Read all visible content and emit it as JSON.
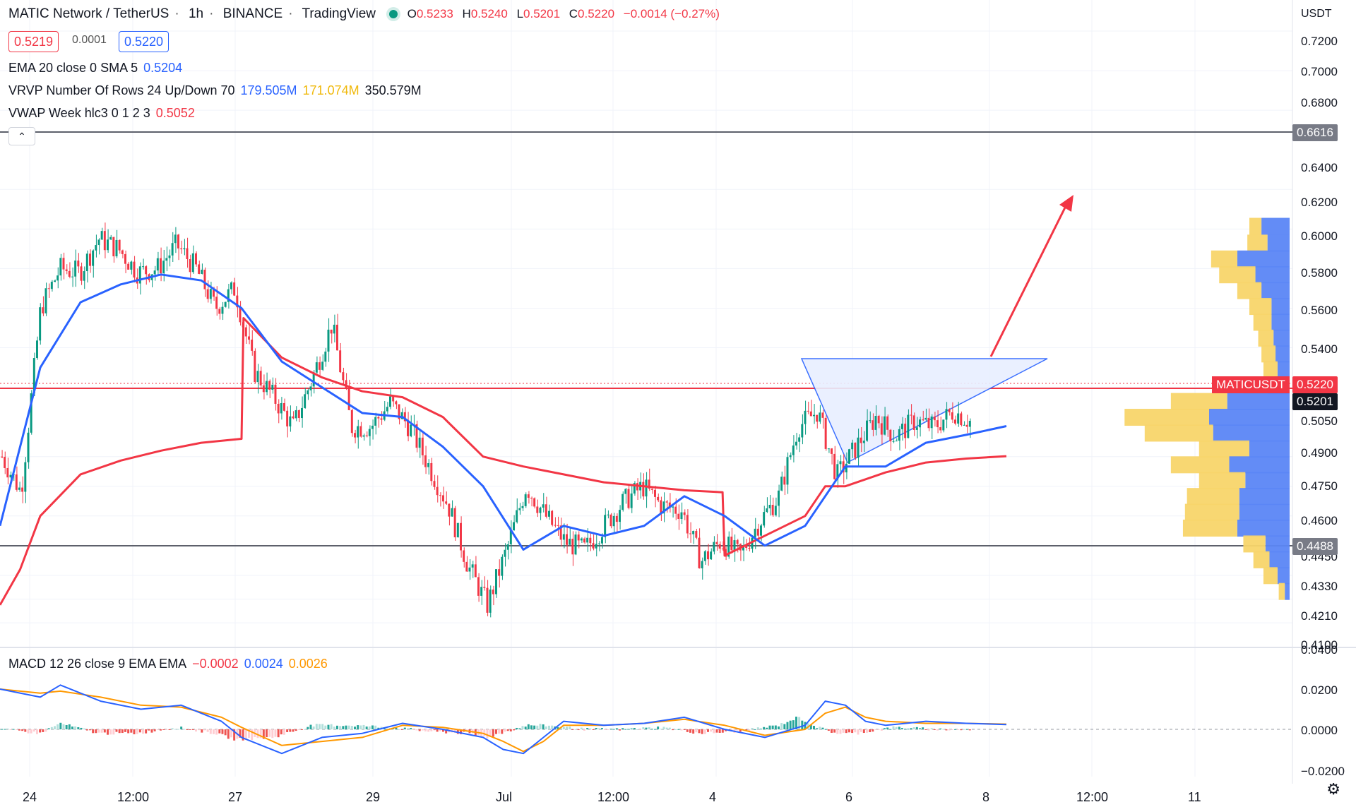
{
  "header": {
    "symbol_title": "MATIC Network / TetherUS",
    "interval": "1h",
    "exchange": "BINANCE",
    "source": "TradingView",
    "ohlc": {
      "o_label": "O",
      "o": "0.5233",
      "h_label": "H",
      "h": "0.5240",
      "l_label": "L",
      "l": "0.5201",
      "c_label": "C",
      "c": "0.5220",
      "change": "−0.0014 (−0.27%)"
    },
    "bid": "0.5219",
    "spread": "0.0001",
    "ask": "0.5220"
  },
  "indicators": {
    "ema": {
      "name": "EMA 20 close 0 SMA 5",
      "value": "0.5204"
    },
    "vrvp": {
      "name": "VRVP Number Of Rows 24 Up/Down 70",
      "up": "179.505M",
      "down": "171.074M",
      "total": "350.579M"
    },
    "vwap": {
      "name": "VWAP Week hlc3 0 1 2 3",
      "value": "0.5052"
    },
    "macd": {
      "name": "MACD 12 26 close 9 EMA EMA",
      "hist": "−0.0002",
      "macd": "0.0024",
      "signal": "0.0026"
    }
  },
  "price_axis": {
    "currency": "USDT",
    "ticks": [
      "0.7200",
      "0.7000",
      "0.6800",
      "0.6616",
      "0.6400",
      "0.6200",
      "0.6000",
      "0.5800",
      "0.5600",
      "0.5400",
      "0.5220",
      "0.5201",
      "0.5050",
      "0.4900",
      "0.4750",
      "0.4600",
      "0.4488",
      "0.4450",
      "0.4330",
      "0.4210",
      "0.4100"
    ],
    "level_tags": {
      "resistance": "0.6616",
      "current": "0.5220",
      "low_marker": "0.5201",
      "support": "0.4488"
    },
    "symbol_tag": "MATICUSDT"
  },
  "macd_axis": {
    "ticks": [
      "0.0400",
      "0.0200",
      "0.0000",
      "−0.0200"
    ]
  },
  "time_axis": {
    "labels": [
      "24",
      "12:00",
      "27",
      "29",
      "Jul",
      "12:00",
      "4",
      "6",
      "8",
      "12:00",
      "11"
    ]
  },
  "colors": {
    "up": "#089981",
    "down": "#f23645",
    "ema": "#2962ff",
    "vwap": "#f23645",
    "macd": "#2962ff",
    "signal": "#ff9800",
    "vol_up": "#5b86f5",
    "vol_down": "#f8d56a",
    "triangle_fill": "#e8efff",
    "arrow": "#f23645"
  },
  "icons": {
    "collapse": "chevron-up-icon",
    "settings": "gear-icon"
  },
  "chart_data": {
    "type": "candlestick",
    "title": "MATIC Network / TetherUS",
    "ylim": [
      0.41,
      0.725
    ],
    "x_ticks": [
      "24",
      "12:00",
      "27",
      "29",
      "Jul",
      "12:00",
      "4",
      "6",
      "8",
      "12:00",
      "11"
    ],
    "horizontal_levels": [
      0.6616,
      0.522,
      0.4488
    ],
    "price_path": [
      [
        0,
        0.505
      ],
      [
        1,
        0.487
      ],
      [
        2,
        0.58
      ],
      [
        3,
        0.6
      ],
      [
        4,
        0.598
      ],
      [
        5,
        0.615
      ],
      [
        6,
        0.61
      ],
      [
        7,
        0.598
      ],
      [
        8,
        0.6
      ],
      [
        9,
        0.612
      ],
      [
        10,
        0.6
      ],
      [
        11,
        0.58
      ],
      [
        12,
        0.59
      ],
      [
        13,
        0.548
      ],
      [
        14,
        0.535
      ],
      [
        15,
        0.52
      ],
      [
        16,
        0.545
      ],
      [
        17,
        0.572
      ],
      [
        18,
        0.52
      ],
      [
        19,
        0.52
      ],
      [
        20,
        0.532
      ],
      [
        21,
        0.52
      ],
      [
        22,
        0.5
      ],
      [
        23,
        0.48
      ],
      [
        24,
        0.45
      ],
      [
        25,
        0.43
      ],
      [
        26,
        0.458
      ],
      [
        27,
        0.49
      ],
      [
        28,
        0.475
      ],
      [
        29,
        0.462
      ],
      [
        30,
        0.458
      ],
      [
        31,
        0.47
      ],
      [
        32,
        0.482
      ],
      [
        33,
        0.49
      ],
      [
        34,
        0.48
      ],
      [
        35,
        0.478
      ],
      [
        36,
        0.452
      ],
      [
        37,
        0.462
      ],
      [
        38,
        0.455
      ],
      [
        39,
        0.472
      ],
      [
        40,
        0.485
      ],
      [
        41,
        0.52
      ],
      [
        42,
        0.528
      ],
      [
        43,
        0.495
      ],
      [
        44,
        0.51
      ],
      [
        45,
        0.525
      ],
      [
        46,
        0.515
      ],
      [
        47,
        0.523
      ],
      [
        48,
        0.52
      ],
      [
        49,
        0.528
      ],
      [
        50,
        0.522
      ]
    ],
    "ema20": [
      [
        0,
        0.47
      ],
      [
        2,
        0.55
      ],
      [
        4,
        0.583
      ],
      [
        6,
        0.592
      ],
      [
        8,
        0.597
      ],
      [
        10,
        0.594
      ],
      [
        12,
        0.58
      ],
      [
        14,
        0.553
      ],
      [
        16,
        0.54
      ],
      [
        18,
        0.527
      ],
      [
        20,
        0.525
      ],
      [
        22,
        0.51
      ],
      [
        24,
        0.49
      ],
      [
        26,
        0.458
      ],
      [
        28,
        0.47
      ],
      [
        30,
        0.465
      ],
      [
        32,
        0.47
      ],
      [
        34,
        0.485
      ],
      [
        36,
        0.475
      ],
      [
        38,
        0.46
      ],
      [
        40,
        0.47
      ],
      [
        42,
        0.5
      ],
      [
        44,
        0.5
      ],
      [
        46,
        0.512
      ],
      [
        48,
        0.516
      ],
      [
        50,
        0.5204
      ]
    ],
    "vwap": [
      [
        0,
        0.43
      ],
      [
        1,
        0.448
      ],
      [
        2,
        0.475
      ],
      [
        4,
        0.496
      ],
      [
        6,
        0.503
      ],
      [
        8,
        0.508
      ],
      [
        10,
        0.512
      ],
      [
        12,
        0.514
      ],
      [
        12.1,
        0.575
      ],
      [
        14,
        0.555
      ],
      [
        16,
        0.545
      ],
      [
        18,
        0.538
      ],
      [
        20,
        0.535
      ],
      [
        22,
        0.525
      ],
      [
        24,
        0.505
      ],
      [
        26,
        0.5
      ],
      [
        28,
        0.496
      ],
      [
        30,
        0.492
      ],
      [
        32,
        0.49
      ],
      [
        34,
        0.488
      ],
      [
        35.9,
        0.487
      ],
      [
        36,
        0.455
      ],
      [
        38,
        0.465
      ],
      [
        40,
        0.475
      ],
      [
        41,
        0.49
      ],
      [
        42,
        0.49
      ],
      [
        44,
        0.497
      ],
      [
        46,
        0.502
      ],
      [
        48,
        0.504
      ],
      [
        50,
        0.5052
      ]
    ],
    "volume_profile": [
      {
        "price": 0.621,
        "up": 0.3,
        "down": 0.7
      },
      {
        "price": 0.6125,
        "up": 0.5,
        "down": 0.55
      },
      {
        "price": 0.6045,
        "up": 0.65,
        "down": 1.3
      },
      {
        "price": 0.5965,
        "up": 0.9,
        "down": 0.85
      },
      {
        "price": 0.5885,
        "up": 0.6,
        "down": 0.7
      },
      {
        "price": 0.5805,
        "up": 0.55,
        "down": 0.45
      },
      {
        "price": 0.5725,
        "up": 0.45,
        "down": 0.45
      },
      {
        "price": 0.5645,
        "up": 0.38,
        "down": 0.4
      },
      {
        "price": 0.5565,
        "up": 0.35,
        "down": 0.35
      },
      {
        "price": 0.5485,
        "up": 0.35,
        "down": 0.3
      },
      {
        "price": 0.5405,
        "up": 0.6,
        "down": 0.55
      },
      {
        "price": 0.5325,
        "up": 1.4,
        "down": 1.55
      },
      {
        "price": 0.5245,
        "up": 2.1,
        "down": 2.0
      },
      {
        "price": 0.5165,
        "up": 1.7,
        "down": 1.9
      },
      {
        "price": 0.5085,
        "up": 1.25,
        "down": 1.0
      },
      {
        "price": 0.5005,
        "up": 1.45,
        "down": 1.5
      },
      {
        "price": 0.4925,
        "up": 1.15,
        "down": 1.1
      },
      {
        "price": 0.4845,
        "up": 1.3,
        "down": 1.25
      },
      {
        "price": 0.4765,
        "up": 1.35,
        "down": 1.25
      },
      {
        "price": 0.4685,
        "up": 1.35,
        "down": 1.3
      },
      {
        "price": 0.4605,
        "up": 0.55,
        "down": 0.6
      },
      {
        "price": 0.4525,
        "up": 0.4,
        "down": 0.5
      },
      {
        "price": 0.4445,
        "up": 0.35,
        "down": 0.3
      },
      {
        "price": 0.4365,
        "up": 0.15,
        "down": 0.12
      }
    ],
    "macd_line": [
      [
        0,
        0.02
      ],
      [
        2,
        0.016
      ],
      [
        3,
        0.022
      ],
      [
        5,
        0.014
      ],
      [
        7,
        0.01
      ],
      [
        9,
        0.012
      ],
      [
        11,
        0.004
      ],
      [
        12,
        -0.004
      ],
      [
        14,
        -0.012
      ],
      [
        16,
        -0.004
      ],
      [
        18,
        -0.002
      ],
      [
        20,
        0.003
      ],
      [
        22,
        0.0
      ],
      [
        24,
        -0.004
      ],
      [
        25,
        -0.01
      ],
      [
        26,
        -0.012
      ],
      [
        27,
        -0.004
      ],
      [
        28,
        0.004
      ],
      [
        30,
        0.002
      ],
      [
        32,
        0.003
      ],
      [
        34,
        0.006
      ],
      [
        36,
        0.0
      ],
      [
        38,
        -0.004
      ],
      [
        40,
        0.002
      ],
      [
        41,
        0.014
      ],
      [
        42,
        0.012
      ],
      [
        43,
        0.004
      ],
      [
        44,
        0.002
      ],
      [
        46,
        0.004
      ],
      [
        48,
        0.003
      ],
      [
        50,
        0.0024
      ]
    ],
    "signal_line": [
      [
        0,
        0.02
      ],
      [
        2,
        0.018
      ],
      [
        3,
        0.019
      ],
      [
        5,
        0.016
      ],
      [
        7,
        0.012
      ],
      [
        9,
        0.011
      ],
      [
        11,
        0.006
      ],
      [
        12,
        0.001
      ],
      [
        14,
        -0.008
      ],
      [
        16,
        -0.006
      ],
      [
        18,
        -0.004
      ],
      [
        20,
        0.002
      ],
      [
        22,
        0.001
      ],
      [
        24,
        -0.002
      ],
      [
        25,
        -0.006
      ],
      [
        26,
        -0.011
      ],
      [
        27,
        -0.006
      ],
      [
        28,
        0.002
      ],
      [
        30,
        0.002
      ],
      [
        32,
        0.003
      ],
      [
        34,
        0.005
      ],
      [
        36,
        0.002
      ],
      [
        38,
        -0.003
      ],
      [
        40,
        0.0
      ],
      [
        41,
        0.008
      ],
      [
        42,
        0.011
      ],
      [
        43,
        0.006
      ],
      [
        44,
        0.004
      ],
      [
        46,
        0.003
      ],
      [
        48,
        0.003
      ],
      [
        50,
        0.0026
      ]
    ]
  }
}
